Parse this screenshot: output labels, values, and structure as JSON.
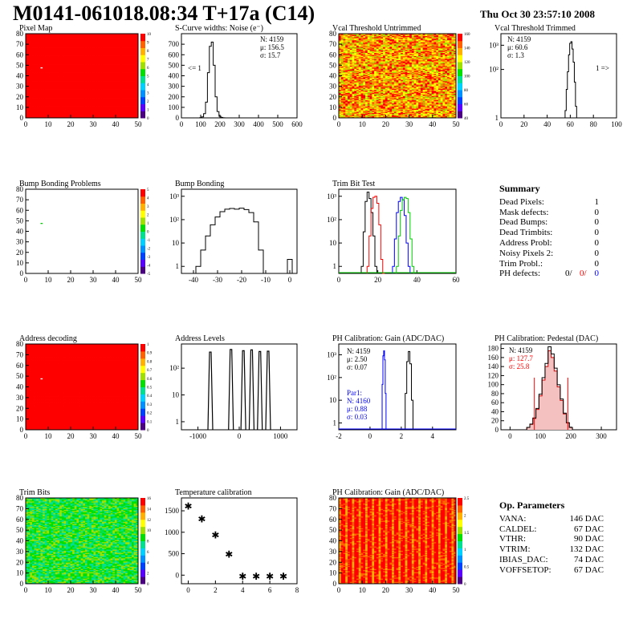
{
  "header": {
    "title": "M0141-061018.08:34 T+17a (C14)",
    "timestamp": "Thu Oct 30 23:57:10 2008"
  },
  "colors": {
    "red": "#ff0000",
    "green": "#00cc00",
    "blue": "#0000ff",
    "pedestal_red": "#cc0000"
  },
  "panels": {
    "pixel_map": {
      "title": "Pixel Map",
      "x_ticks": [
        "0",
        "10",
        "20",
        "30",
        "40",
        "50"
      ],
      "y_ticks": [
        "0",
        "10",
        "20",
        "30",
        "40",
        "50",
        "60",
        "70",
        "80"
      ],
      "z_ticks": [
        "0",
        "1",
        "2",
        "3",
        "4",
        "5",
        "6",
        "7",
        "8",
        "9",
        "10"
      ]
    },
    "scurve": {
      "title": "S-Curve widths: Noise (e⁻)",
      "x_ticks": [
        "0",
        "100",
        "200",
        "300",
        "400",
        "500",
        "600"
      ],
      "y_ticks": [
        "0",
        "100",
        "200",
        "300",
        "400",
        "500",
        "600",
        "700"
      ],
      "stats": [
        "N: 4159",
        "μ: 156.5",
        "σ: 15.7"
      ],
      "underflow_label": "<= 1"
    },
    "vcal_untrimmed": {
      "title": "Vcal Threshold Untrimmed",
      "x_ticks": [
        "0",
        "10",
        "20",
        "30",
        "40",
        "50"
      ],
      "y_ticks": [
        "0",
        "10",
        "20",
        "30",
        "40",
        "50",
        "60",
        "70",
        "80"
      ],
      "z_ticks": [
        "40",
        "60",
        "80",
        "100",
        "120",
        "140",
        "160"
      ]
    },
    "vcal_trimmed": {
      "title": "Vcal Threshold Trimmed",
      "x_ticks": [
        "0",
        "20",
        "40",
        "60",
        "80",
        "100"
      ],
      "y_ticks": [
        "1",
        "10²",
        "10³"
      ],
      "stats": [
        "N: 4159",
        "μ: 60.6",
        "σ: 1.3"
      ],
      "overflow_label": "1 =>"
    },
    "bump_problems": {
      "title": "Bump Bonding Problems",
      "x_ticks": [
        "0",
        "10",
        "20",
        "30",
        "40",
        "50"
      ],
      "y_ticks": [
        "0",
        "10",
        "20",
        "30",
        "40",
        "50",
        "60",
        "70",
        "80"
      ],
      "z_ticks": [
        "-5",
        "-4",
        "-3",
        "-2",
        "-1",
        "0",
        "1",
        "2",
        "3",
        "4",
        "5"
      ]
    },
    "bump_bonding": {
      "title": "Bump Bonding",
      "x_ticks": [
        "-40",
        "-30",
        "-20",
        "-10",
        "0"
      ],
      "y_ticks": [
        "1",
        "10",
        "10²",
        "10³"
      ]
    },
    "trim_bit_test": {
      "title": "Trim Bit Test",
      "x_ticks": [
        "0",
        "20",
        "40",
        "60"
      ],
      "y_ticks": [
        "1",
        "10",
        "10²",
        "10³"
      ]
    },
    "summary": {
      "heading": "Summary",
      "rows": [
        {
          "label": "Dead Pixels:",
          "value": "1"
        },
        {
          "label": "Mask defects:",
          "value": "0"
        },
        {
          "label": "Dead Bumps:",
          "value": "0"
        },
        {
          "label": "Dead Trimbits:",
          "value": "0"
        },
        {
          "label": "Address Probl:",
          "value": "0"
        },
        {
          "label": "Noisy Pixels 2:",
          "value": "0"
        },
        {
          "label": "Trim Probl.:",
          "value": "0"
        }
      ],
      "ph_label": "PH defects:",
      "ph_values": [
        "0/",
        "0/",
        "0"
      ]
    },
    "address_decoding": {
      "title": "Address decoding",
      "x_ticks": [
        "0",
        "10",
        "20",
        "30",
        "40",
        "50"
      ],
      "y_ticks": [
        "0",
        "10",
        "20",
        "30",
        "40",
        "50",
        "60",
        "70",
        "80"
      ],
      "z_ticks": [
        "0",
        "0.1",
        "0.2",
        "0.3",
        "0.4",
        "0.5",
        "0.6",
        "0.7",
        "0.8",
        "0.9",
        "1"
      ]
    },
    "address_levels": {
      "title": "Address Levels",
      "x_ticks": [
        "-1000",
        "0",
        "1000"
      ],
      "y_ticks": [
        "1",
        "10",
        "10²"
      ]
    },
    "ph_gain": {
      "title": "PH Calibration: Gain (ADC/DAC)",
      "x_ticks": [
        "-2",
        "0",
        "2",
        "4"
      ],
      "y_ticks": [
        "1",
        "10",
        "10²",
        "10³"
      ],
      "stats": [
        "N: 4159",
        "μ: 2.50",
        "σ: 0.07"
      ],
      "par1_stats": [
        "Par1:",
        "N: 4160",
        "μ: 0.88",
        "σ: 0.03"
      ]
    },
    "ph_pedestal": {
      "title": "PH Calibration: Pedestal (DAC)",
      "x_ticks": [
        "0",
        "100",
        "200",
        "300"
      ],
      "y_ticks": [
        "0",
        "20",
        "40",
        "60",
        "80",
        "100",
        "120",
        "140",
        "160",
        "180"
      ],
      "stats": [
        "N: 4159",
        "μ: 127.7",
        "σ: 25.8"
      ]
    },
    "trim_bits": {
      "title": "Trim Bits",
      "x_ticks": [
        "0",
        "10",
        "20",
        "30",
        "40",
        "50"
      ],
      "y_ticks": [
        "0",
        "10",
        "20",
        "30",
        "40",
        "50",
        "60",
        "70",
        "80"
      ],
      "z_ticks": [
        "0",
        "2",
        "4",
        "6",
        "8",
        "10",
        "12",
        "14",
        "16"
      ]
    },
    "temperature": {
      "title": "Temperature calibration",
      "x_ticks": [
        "0",
        "2",
        "4",
        "6",
        "8"
      ],
      "y_ticks": [
        "0",
        "500",
        "1000",
        "1500"
      ]
    },
    "ph_gain_map": {
      "title": "PH Calibration: Gain (ADC/DAC)",
      "x_ticks": [
        "0",
        "10",
        "20",
        "30",
        "40",
        "50"
      ],
      "y_ticks": [
        "0",
        "10",
        "20",
        "30",
        "40",
        "50",
        "60",
        "70",
        "80"
      ],
      "z_ticks": [
        "0",
        "0.5",
        "1",
        "1.5",
        "2",
        "2.5"
      ]
    },
    "op_params": {
      "heading": "Op. Parameters",
      "rows": [
        {
          "label": "VANA:",
          "value": "146 DAC"
        },
        {
          "label": "CALDEL:",
          "value": "67 DAC"
        },
        {
          "label": "VTHR:",
          "value": "90 DAC"
        },
        {
          "label": "VTRIM:",
          "value": "132 DAC"
        },
        {
          "label": "IBIAS_DAC:",
          "value": "74 DAC"
        },
        {
          "label": "VOFFSETOP:",
          "value": "67 DAC"
        }
      ]
    }
  },
  "chart_data": [
    {
      "type": "heatmap",
      "name": "Pixel Map",
      "xlim": [
        0,
        52
      ],
      "ylim": [
        0,
        80
      ],
      "zlim": [
        0,
        10
      ],
      "fill_value": 10,
      "special_points": [
        {
          "x": 7,
          "y": 47,
          "z": 0
        }
      ]
    },
    {
      "type": "bar",
      "name": "S-Curve widths: Noise",
      "xlim": [
        0,
        600
      ],
      "ylim": [
        0,
        800
      ],
      "x": [
        100,
        110,
        120,
        130,
        140,
        150,
        160,
        170,
        180,
        190,
        200,
        210,
        220
      ],
      "values": [
        2,
        10,
        40,
        150,
        430,
        680,
        720,
        500,
        200,
        60,
        15,
        5,
        1
      ]
    },
    {
      "type": "heatmap",
      "name": "Vcal Threshold Untrimmed",
      "xlim": [
        0,
        52
      ],
      "ylim": [
        0,
        80
      ],
      "zlim": [
        40,
        165
      ]
    },
    {
      "type": "bar",
      "name": "Vcal Threshold Trimmed",
      "log_y": true,
      "xlim": [
        0,
        100
      ],
      "ylim": [
        1,
        3000
      ],
      "x": [
        56,
        57,
        58,
        59,
        60,
        61,
        62,
        63,
        64,
        65
      ],
      "values": [
        2,
        15,
        80,
        400,
        1200,
        1400,
        700,
        200,
        30,
        3
      ]
    },
    {
      "type": "heatmap",
      "name": "Bump Bonding Problems",
      "xlim": [
        0,
        52
      ],
      "ylim": [
        0,
        80
      ],
      "zlim": [
        -5,
        5
      ],
      "special_points": [
        {
          "x": 7,
          "y": 47,
          "z": 0
        }
      ]
    },
    {
      "type": "bar",
      "name": "Bump Bonding",
      "log_y": true,
      "xlim": [
        -45,
        3
      ],
      "ylim": [
        0.5,
        2000
      ],
      "x": [
        -38,
        -36,
        -34,
        -32,
        -30,
        -28,
        -26,
        -24,
        -22,
        -20,
        -18,
        -16,
        -14,
        -12,
        -10,
        -8,
        -6,
        -4,
        -2,
        0
      ],
      "values": [
        1,
        5,
        20,
        60,
        130,
        220,
        280,
        300,
        280,
        310,
        270,
        200,
        80,
        5,
        0,
        0,
        0,
        0,
        0,
        2
      ]
    },
    {
      "type": "line",
      "name": "Trim Bit Test",
      "log_y": true,
      "xlim": [
        0,
        60
      ],
      "ylim": [
        0.5,
        2000
      ],
      "series": [
        {
          "color": "black",
          "x": [
            12,
            13,
            14,
            15,
            16,
            17,
            18,
            19,
            20
          ],
          "values": [
            1,
            30,
            600,
            1500,
            800,
            200,
            20,
            1,
            0
          ]
        },
        {
          "color": "red",
          "x": [
            15,
            16,
            17,
            18,
            19,
            20,
            21,
            22,
            23
          ],
          "values": [
            1,
            20,
            300,
            900,
            1000,
            500,
            60,
            2,
            0
          ]
        },
        {
          "color": "blue",
          "x": [
            28,
            29,
            30,
            31,
            32,
            33,
            34,
            35,
            36
          ],
          "values": [
            1,
            15,
            200,
            600,
            900,
            700,
            150,
            10,
            1
          ]
        },
        {
          "color": "green",
          "x": [
            30,
            31,
            32,
            33,
            34,
            35,
            36,
            37,
            38
          ],
          "values": [
            1,
            20,
            250,
            700,
            900,
            800,
            200,
            15,
            1
          ]
        }
      ]
    },
    {
      "type": "heatmap",
      "name": "Address decoding",
      "xlim": [
        0,
        52
      ],
      "ylim": [
        0,
        80
      ],
      "zlim": [
        0,
        1
      ],
      "fill_value": 1,
      "special_points": [
        {
          "x": 7,
          "y": 47,
          "z": 0
        }
      ]
    },
    {
      "type": "bar",
      "name": "Address Levels",
      "log_y": true,
      "xlim": [
        -1400,
        1400
      ],
      "ylim": [
        0.5,
        800
      ],
      "x": [
        -700,
        -200,
        100,
        300,
        500,
        700
      ],
      "values": [
        400,
        500,
        450,
        480,
        420,
        430
      ]
    },
    {
      "type": "line",
      "name": "PH Calibration: Gain",
      "log_y": true,
      "xlim": [
        -2,
        5.5
      ],
      "ylim": [
        0.5,
        3000
      ],
      "series": [
        {
          "color": "black",
          "x": [
            2.3,
            2.4,
            2.5,
            2.6,
            2.7
          ],
          "values": [
            20,
            500,
            1400,
            400,
            10
          ]
        },
        {
          "color": "blue",
          "x": [
            0.8,
            0.85,
            0.9,
            0.95,
            1.0
          ],
          "values": [
            50,
            900,
            1500,
            600,
            20
          ]
        }
      ]
    },
    {
      "type": "bar",
      "name": "PH Calibration: Pedestal",
      "xlim": [
        -30,
        350
      ],
      "ylim": [
        0,
        190
      ],
      "x": [
        60,
        70,
        80,
        90,
        100,
        110,
        120,
        130,
        140,
        150,
        160,
        170,
        180,
        190,
        200
      ],
      "values": [
        5,
        12,
        25,
        45,
        75,
        110,
        140,
        175,
        160,
        130,
        95,
        65,
        35,
        15,
        5
      ]
    },
    {
      "type": "heatmap",
      "name": "Trim Bits",
      "xlim": [
        0,
        52
      ],
      "ylim": [
        0,
        80
      ],
      "zlim": [
        0,
        16
      ]
    },
    {
      "type": "scatter",
      "name": "Temperature calibration",
      "xlim": [
        -0.5,
        8
      ],
      "ylim": [
        -200,
        1800
      ],
      "x": [
        0,
        1,
        2,
        3,
        4,
        5,
        6,
        7
      ],
      "values": [
        1620,
        1320,
        950,
        500,
        -15,
        -15,
        -15,
        -15
      ]
    },
    {
      "type": "heatmap",
      "name": "PH Calibration: Gain map",
      "xlim": [
        0,
        52
      ],
      "ylim": [
        0,
        80
      ],
      "zlim": [
        0,
        2.7
      ]
    }
  ]
}
